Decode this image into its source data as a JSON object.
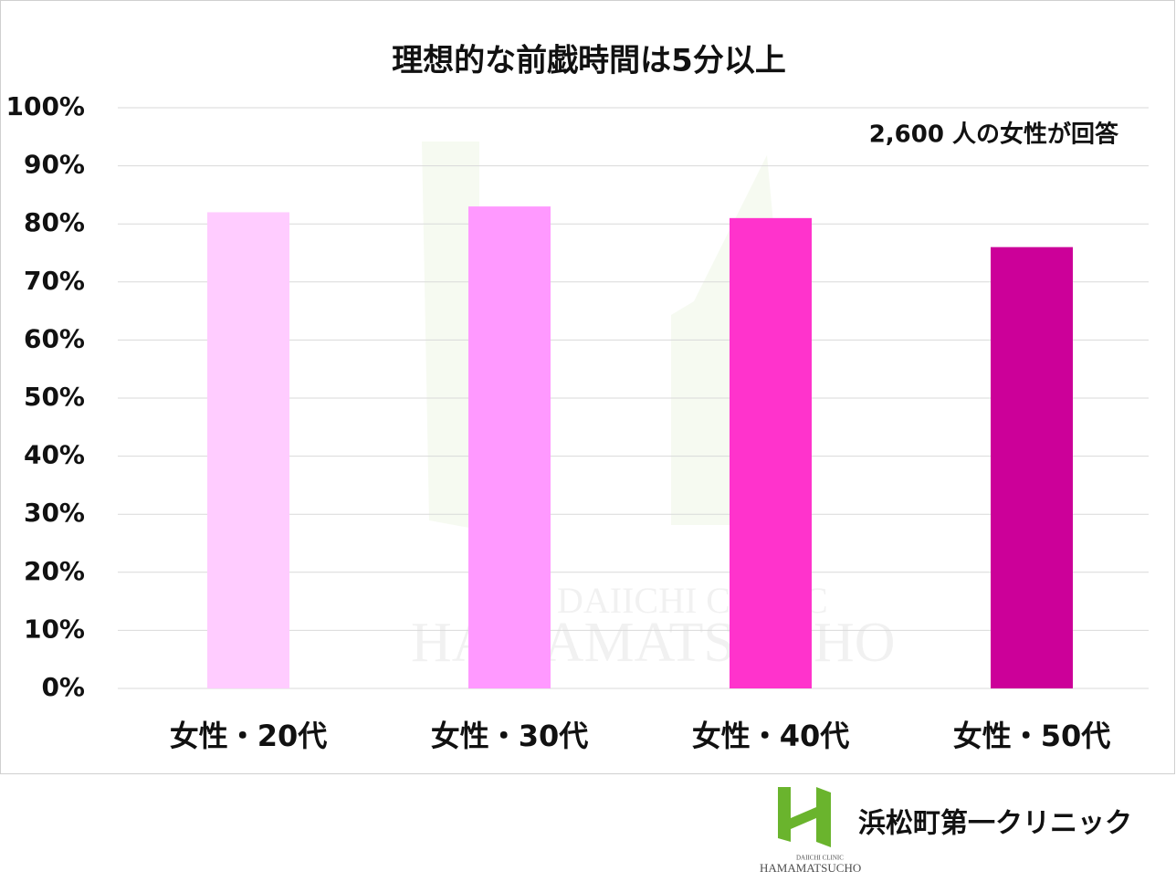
{
  "chart_data": {
    "type": "bar",
    "title": "理想的な前戯時間は5分以上",
    "annotation": "2,600 人の女性が回答",
    "categories": [
      "女性・20代",
      "女性・30代",
      "女性・40代",
      "女性・50代"
    ],
    "values": [
      82,
      83,
      81,
      76
    ],
    "colors": [
      "#ffccff",
      "#ff99ff",
      "#ff33cc",
      "#cc0099"
    ],
    "ylim": [
      0,
      100
    ],
    "yticks": [
      {
        "value": 0,
        "label": "0%"
      },
      {
        "value": 10,
        "label": "10%"
      },
      {
        "value": 20,
        "label": "20%"
      },
      {
        "value": 30,
        "label": "30%"
      },
      {
        "value": 40,
        "label": "40%"
      },
      {
        "value": 50,
        "label": "50%"
      },
      {
        "value": 60,
        "label": "60%"
      },
      {
        "value": 70,
        "label": "70%"
      },
      {
        "value": 80,
        "label": "80%"
      },
      {
        "value": 90,
        "label": "90%"
      },
      {
        "value": 100,
        "label": "100%"
      }
    ],
    "grid": true
  },
  "brand": {
    "name": "浜松町第一クリニック",
    "sub": "DAIICHI CLINIC",
    "main": "HAMAMATSUCHO"
  }
}
